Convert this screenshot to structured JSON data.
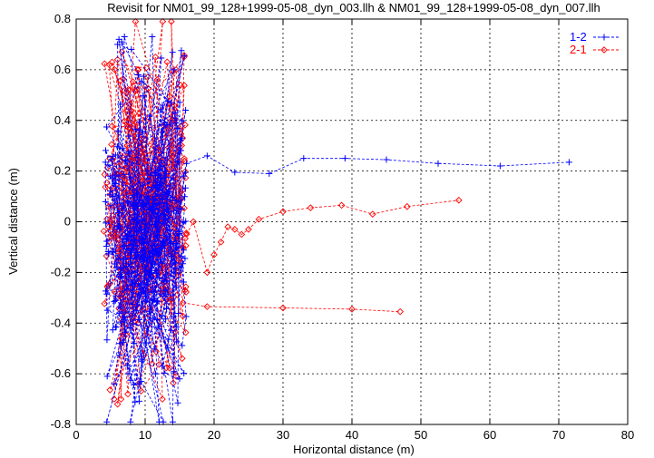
{
  "chart_data": {
    "type": "scatter",
    "title": "Revisit for NM01_99_128+1999-05-08_dyn_003.llh & NM01_99_128+1999-05-08_dyn_007.llh",
    "xlabel": "Horizontal distance (m)",
    "ylabel": "Vertical distance (m)",
    "xlim": [
      0,
      80
    ],
    "ylim": [
      -0.8,
      0.8
    ],
    "xticks": [
      "0",
      "10",
      "20",
      "30",
      "40",
      "50",
      "60",
      "70",
      "80"
    ],
    "yticks": [
      "-0.8",
      "-0.6",
      "-0.4",
      "-0.2",
      "0",
      "0.2",
      "0.4",
      "0.6",
      "0.8"
    ],
    "grid": true,
    "legend_position": "top-right",
    "series": [
      {
        "name": "1-2",
        "color": "#0000ff",
        "marker": "plus",
        "line": "dashed",
        "points": [
          [
            15.2,
            0.05
          ],
          [
            15.6,
            0.18
          ],
          [
            16.0,
            0.23
          ],
          [
            19.0,
            0.26
          ],
          [
            23.0,
            0.195
          ],
          [
            28.0,
            0.19
          ],
          [
            33.0,
            0.25
          ],
          [
            39.0,
            0.25
          ],
          [
            45.0,
            0.245
          ],
          [
            52.5,
            0.23
          ],
          [
            61.5,
            0.22
          ],
          [
            71.5,
            0.235
          ]
        ],
        "cluster": {
          "x_range": [
            4.2,
            16.0
          ],
          "y_range": [
            -0.79,
            0.73
          ],
          "count": 300
        },
        "outliers": [
          [
            6.0,
            0.7
          ],
          [
            6.2,
            0.72
          ],
          [
            6.6,
            0.71
          ],
          [
            7.0,
            0.73
          ],
          [
            8.0,
            0.68
          ],
          [
            9.0,
            0.58
          ],
          [
            12.5,
            0.46
          ],
          [
            13.8,
            0.47
          ],
          [
            14.2,
            0.6
          ],
          [
            4.5,
            -0.61
          ],
          [
            5.5,
            -0.64
          ],
          [
            7.5,
            -0.6
          ],
          [
            9.5,
            -0.55
          ],
          [
            11.5,
            -0.6
          ],
          [
            12.5,
            -0.57
          ],
          [
            14.0,
            -0.79
          ],
          [
            15.0,
            -0.62
          ]
        ]
      },
      {
        "name": "2-1",
        "color": "#ff0000",
        "marker": "diamond",
        "line": "dashed",
        "points": [
          [
            16.0,
            -0.05
          ],
          [
            17.0,
            0.0
          ],
          [
            19.0,
            -0.2
          ],
          [
            20.0,
            -0.13
          ],
          [
            21.0,
            -0.08
          ],
          [
            22.0,
            -0.02
          ],
          [
            23.0,
            -0.03
          ],
          [
            24.0,
            -0.05
          ],
          [
            25.0,
            -0.03
          ],
          [
            26.5,
            0.01
          ],
          [
            30.0,
            0.04
          ],
          [
            34.0,
            0.055
          ],
          [
            38.5,
            0.065
          ],
          [
            43.0,
            0.03
          ],
          [
            48.0,
            0.06
          ],
          [
            55.5,
            0.085
          ]
        ],
        "branch": [
          [
            15.5,
            -0.32
          ],
          [
            19.0,
            -0.335
          ],
          [
            30.0,
            -0.34
          ],
          [
            40.0,
            -0.345
          ],
          [
            47.0,
            -0.355
          ]
        ],
        "cluster": {
          "x_range": [
            4.0,
            16.0
          ],
          "y_range": [
            -0.74,
            0.79
          ],
          "count": 320
        },
        "outliers": [
          [
            4.8,
            0.62
          ],
          [
            5.2,
            0.63
          ],
          [
            6.0,
            0.64
          ],
          [
            9.0,
            0.6
          ],
          [
            11.5,
            0.65
          ],
          [
            13.8,
            0.79
          ],
          [
            14.5,
            0.6
          ],
          [
            5.5,
            -0.7
          ],
          [
            6.0,
            -0.72
          ],
          [
            6.5,
            -0.7
          ],
          [
            7.5,
            -0.68
          ],
          [
            9.0,
            -0.64
          ],
          [
            11.0,
            -0.56
          ],
          [
            12.5,
            -0.7
          ],
          [
            14.5,
            -0.61
          ]
        ]
      }
    ]
  }
}
